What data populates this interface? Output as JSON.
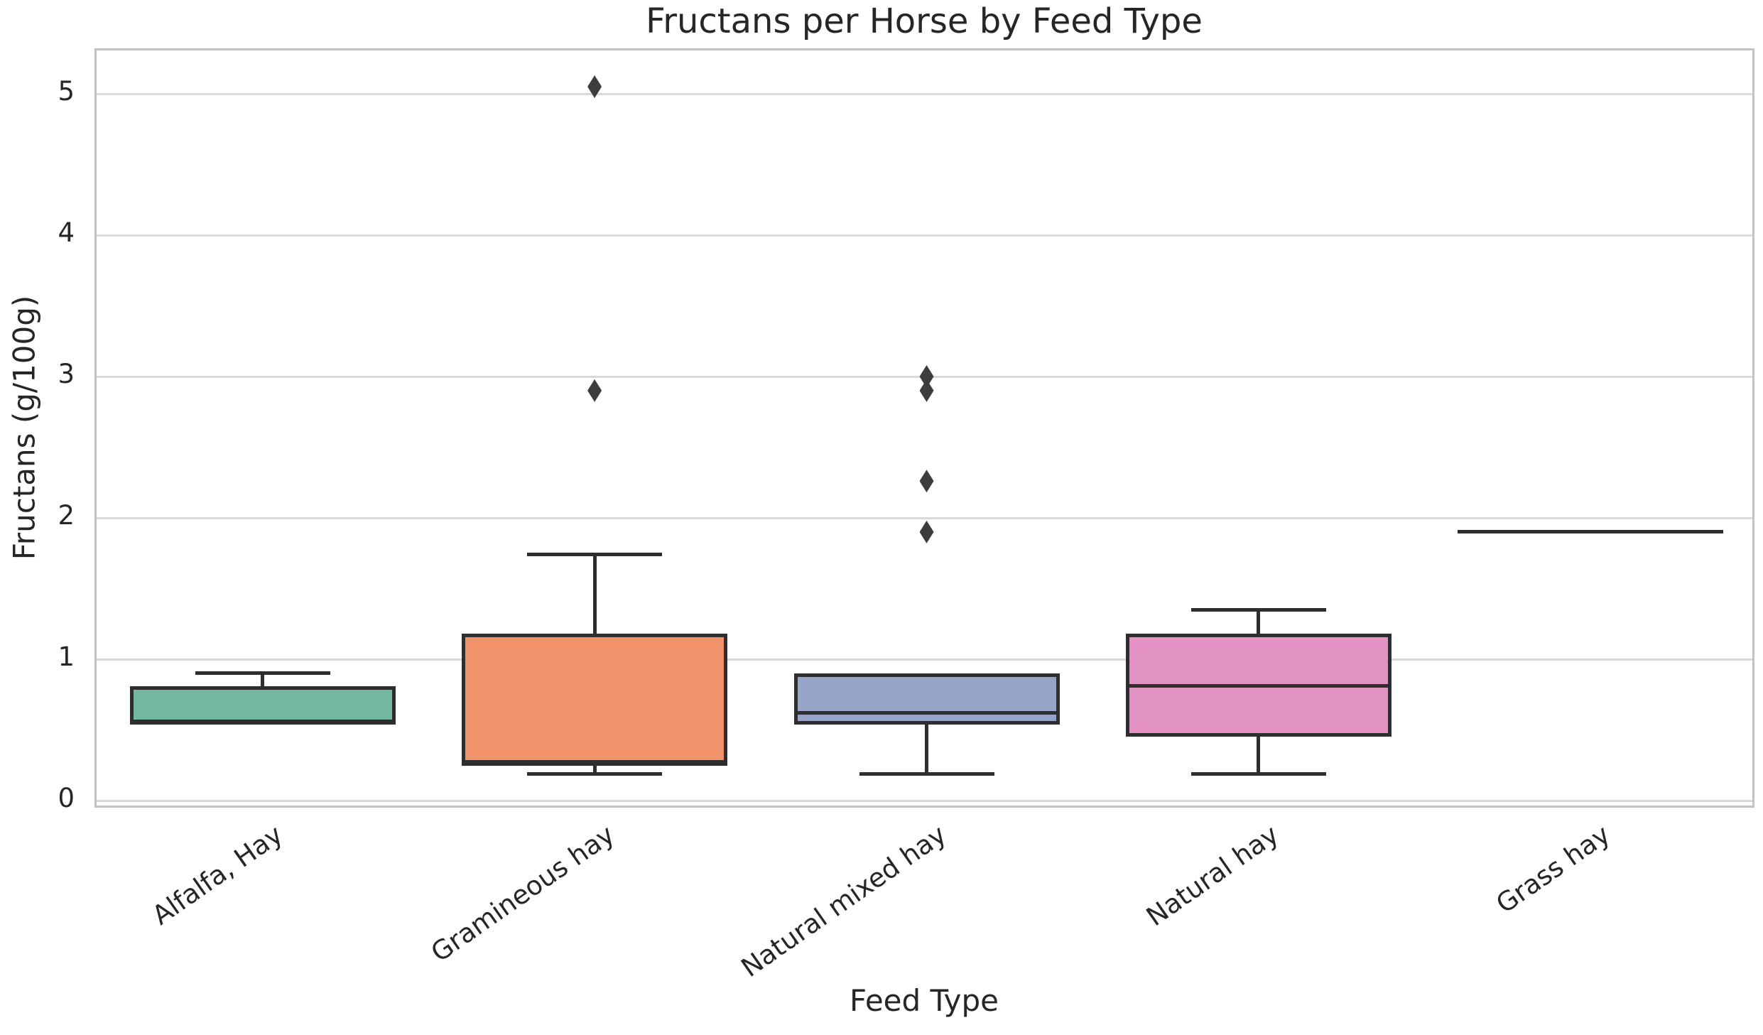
{
  "chart_data": {
    "type": "box",
    "title": "Fructans per Horse by Feed Type",
    "xlabel": "Feed Type",
    "ylabel": "Fructans (g/100g)",
    "ylim": [
      0,
      5.3
    ],
    "yticks": [
      0,
      1,
      2,
      3,
      4,
      5
    ],
    "grid": "horizontal",
    "legend": "none",
    "categories": [
      "Alfalfa, Hay",
      "Gramineous hay",
      "Natural mixed hay",
      "Natural hay",
      "Grass hay"
    ],
    "groups": [
      {
        "label": "Alfalfa, Hay",
        "color": "#72b7a1",
        "whisker_low": 0.55,
        "q1": 0.55,
        "median": 0.55,
        "q3": 0.81,
        "whisker_high": 0.9,
        "outliers": []
      },
      {
        "label": "Gramineous hay",
        "color": "#f0936b",
        "whisker_low": 0.19,
        "q1": 0.26,
        "median": 0.26,
        "q3": 1.18,
        "whisker_high": 1.74,
        "outliers": [
          2.9,
          5.05
        ]
      },
      {
        "label": "Natural mixed hay",
        "color": "#96a4c8",
        "whisker_low": 0.19,
        "q1": 0.54,
        "median": 0.62,
        "q3": 0.9,
        "whisker_high": 0.9,
        "outliers": [
          1.9,
          2.26,
          2.9,
          3.0
        ]
      },
      {
        "label": "Natural hay",
        "color": "#e393c2",
        "whisker_low": 0.19,
        "q1": 0.45,
        "median": 0.81,
        "q3": 1.18,
        "whisker_high": 1.35,
        "outliers": []
      },
      {
        "label": "Grass hay",
        "color": "#a6d854",
        "whisker_low": 1.9,
        "q1": 1.9,
        "median": 1.9,
        "q3": 1.9,
        "whisker_high": 1.9,
        "outliers": []
      }
    ],
    "styles": {
      "box_edge_color": "#2e2e2e",
      "outlier_marker": "diamond",
      "outlier_color": "#3d3d3d",
      "grid_color": "#d9d9d9",
      "spine_color": "#c2c2c2",
      "background": "#ffffff"
    }
  }
}
